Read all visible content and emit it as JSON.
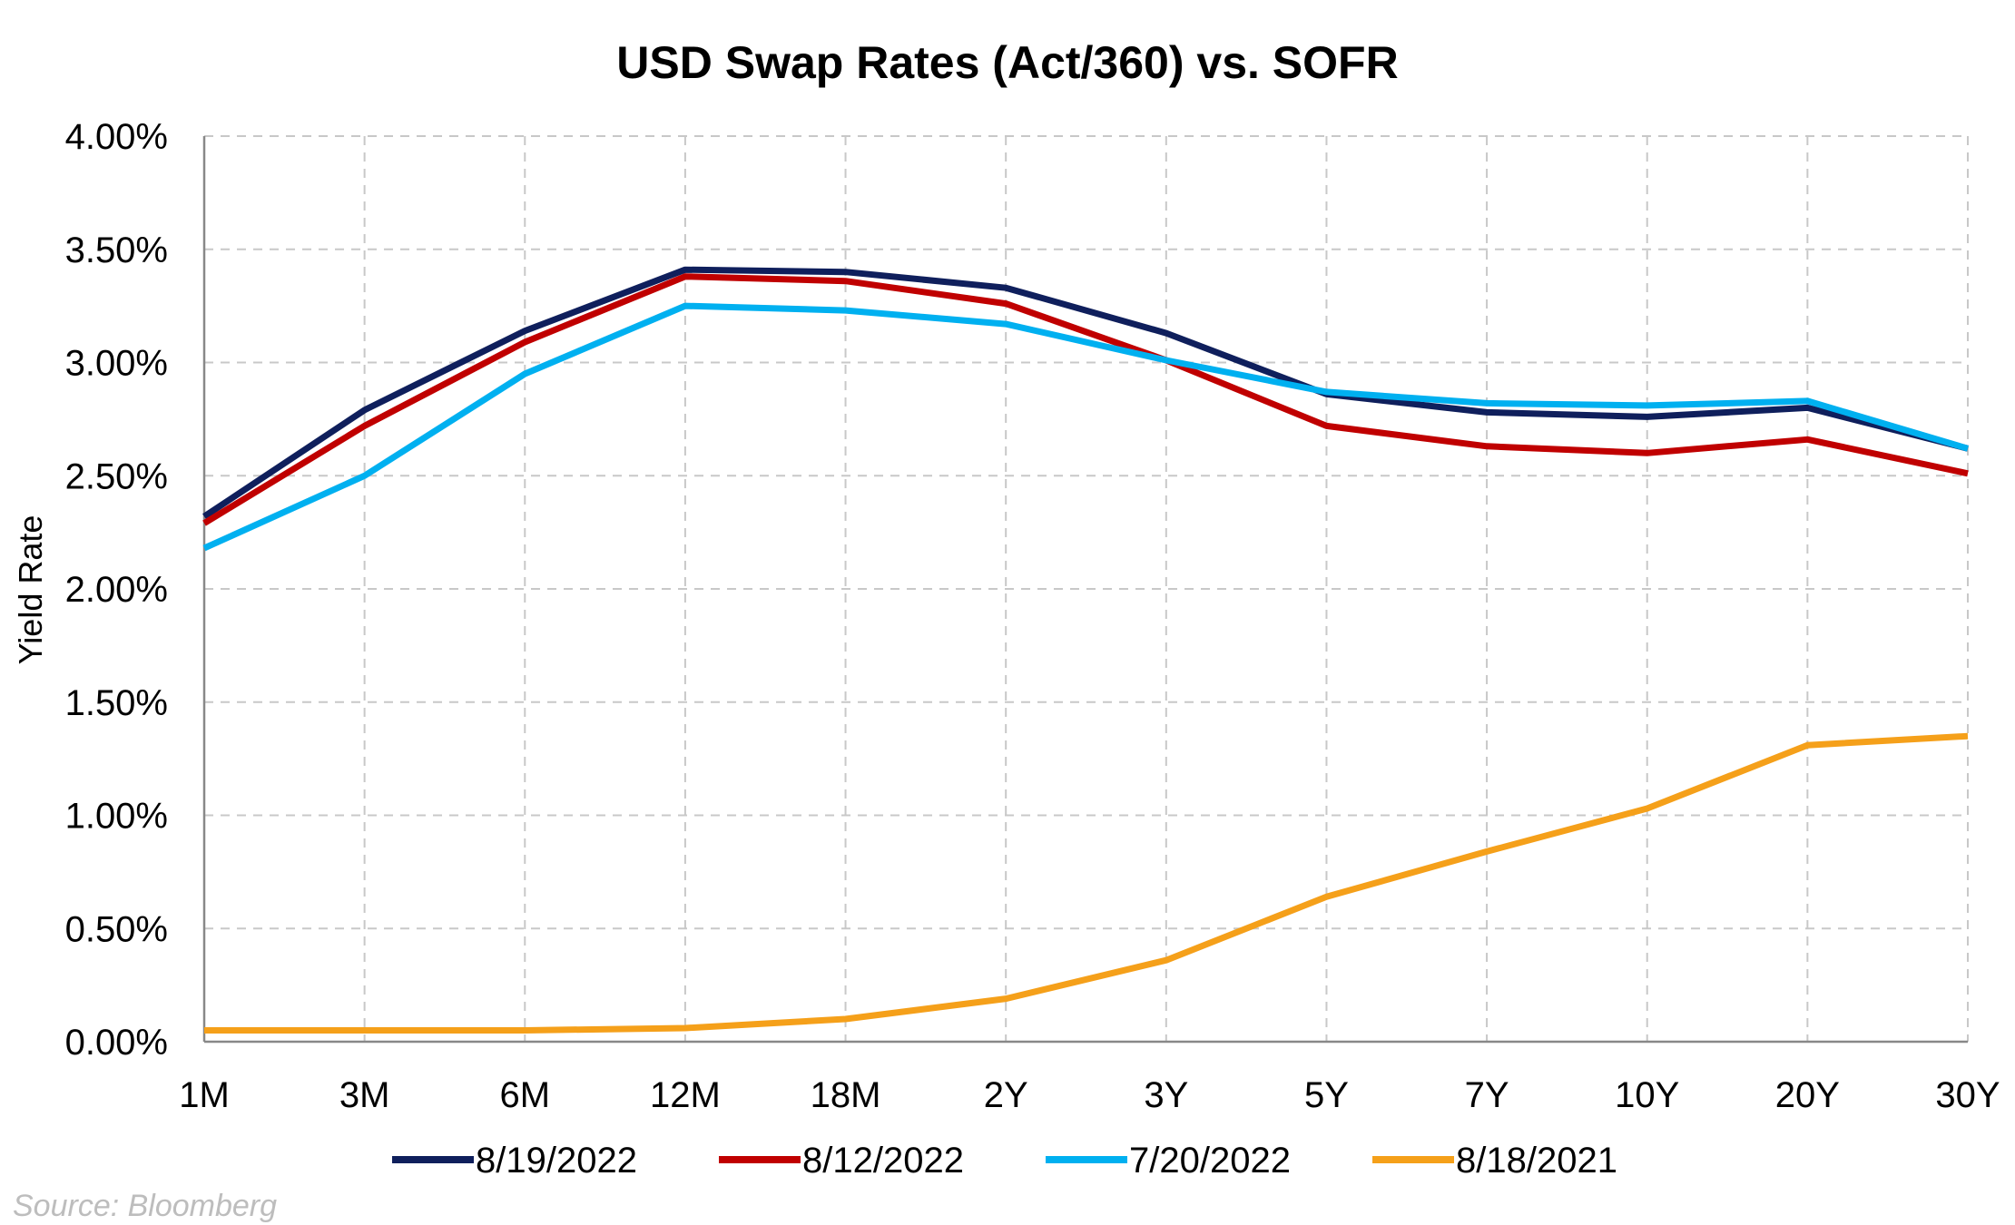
{
  "chart_data": {
    "type": "line",
    "title": "USD Swap Rates (Act/360) vs. SOFR",
    "xlabel": "",
    "ylabel": "Yield Rate",
    "categories": [
      "1M",
      "3M",
      "6M",
      "12M",
      "18M",
      "2Y",
      "3Y",
      "5Y",
      "7Y",
      "10Y",
      "20Y",
      "30Y"
    ],
    "ylim": [
      0,
      4
    ],
    "yticks": [
      {
        "value": 0,
        "label": "0.00%"
      },
      {
        "value": 0.5,
        "label": "0.50%"
      },
      {
        "value": 1,
        "label": "1.00%"
      },
      {
        "value": 1.5,
        "label": "1.50%"
      },
      {
        "value": 2,
        "label": "2.00%"
      },
      {
        "value": 2.5,
        "label": "2.50%"
      },
      {
        "value": 3,
        "label": "3.00%"
      },
      {
        "value": 3.5,
        "label": "3.50%"
      },
      {
        "value": 4,
        "label": "4.00%"
      }
    ],
    "grid": true,
    "legend_position": "bottom",
    "source": "Source: Bloomberg",
    "series": [
      {
        "name": "8/19/2022",
        "color": "#0f1f5c",
        "values": [
          2.32,
          2.79,
          3.14,
          3.41,
          3.4,
          3.33,
          3.13,
          2.86,
          2.78,
          2.76,
          2.8,
          2.62
        ]
      },
      {
        "name": "8/12/2022",
        "color": "#c00000",
        "values": [
          2.29,
          2.72,
          3.09,
          3.38,
          3.36,
          3.26,
          3.01,
          2.72,
          2.63,
          2.6,
          2.66,
          2.51
        ]
      },
      {
        "name": "7/20/2022",
        "color": "#00b0f0",
        "values": [
          2.18,
          2.5,
          2.95,
          3.25,
          3.23,
          3.17,
          3.01,
          2.87,
          2.82,
          2.81,
          2.83,
          2.62
        ]
      },
      {
        "name": "8/18/2021",
        "color": "#f5a01a",
        "values": [
          0.05,
          0.05,
          0.05,
          0.06,
          0.1,
          0.19,
          0.36,
          0.64,
          0.84,
          1.03,
          1.31,
          1.35
        ]
      }
    ]
  }
}
